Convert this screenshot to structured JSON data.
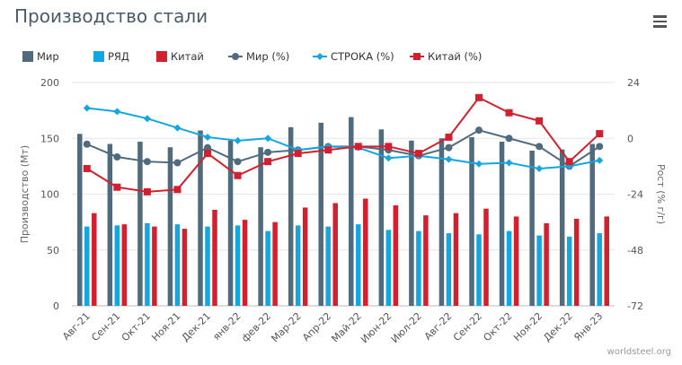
{
  "title": "Производство стали",
  "menu_icon": "hamburger-menu-icon",
  "credit": "worldsteel.org",
  "colors": {
    "world": "#4f6b7d",
    "row": "#12a7e0",
    "china": "#d41f2e"
  },
  "legend": [
    {
      "name": "Мир",
      "kind": "bar",
      "color": "#4f6b7d"
    },
    {
      "name": "РЯД",
      "kind": "bar",
      "color": "#12a7e0"
    },
    {
      "name": "Китай",
      "kind": "bar",
      "color": "#d41f2e"
    },
    {
      "name": "Мир (%)",
      "kind": "line-circle",
      "color": "#4f6b7d"
    },
    {
      "name": "СТРОКА (%)",
      "kind": "line-diamond",
      "color": "#12a7e0"
    },
    {
      "name": "Китай (%)",
      "kind": "line-square",
      "color": "#d41f2e"
    }
  ],
  "chart_data": {
    "type": "bar+line",
    "categories": [
      "Авг-21",
      "Сен-21",
      "Окт-21",
      "Ноя-21",
      "Дек-21",
      "янв-22",
      "фев-22",
      "Мар-22",
      "Апр-22",
      "Май-22",
      "Июн-22",
      "Июл-22",
      "Авг-22",
      "Сен-22",
      "Окт-22",
      "Ноя-22",
      "Дек-22",
      "Янв-23"
    ],
    "y_left": {
      "label": "Производство (Мт)",
      "min": 0,
      "max": 200,
      "ticks": [
        0,
        50,
        100,
        150,
        200
      ]
    },
    "y_right": {
      "label": "Рост (% г/г)",
      "min": -72,
      "max": 24,
      "ticks": [
        -72,
        -48,
        -24,
        0,
        24
      ]
    },
    "bars": [
      {
        "name": "Мир",
        "values": [
          154,
          145,
          147,
          142,
          157,
          148,
          142,
          160,
          164,
          169,
          158,
          148,
          150,
          151,
          147,
          139,
          140,
          145
        ]
      },
      {
        "name": "РЯД",
        "values": [
          71,
          72,
          74,
          73,
          71,
          72,
          67,
          72,
          71,
          73,
          68,
          67,
          65,
          64,
          67,
          63,
          62,
          65
        ]
      },
      {
        "name": "Китай",
        "values": [
          83,
          73,
          71,
          69,
          86,
          77,
          75,
          88,
          92,
          96,
          90,
          81,
          83,
          87,
          80,
          74,
          78,
          80
        ]
      }
    ],
    "lines": [
      {
        "name": "Мир (%)",
        "axis": "right",
        "values": [
          -2.5,
          -8,
          -10,
          -10.5,
          -4,
          -10,
          -6,
          -5,
          -3.5,
          -3.5,
          -5,
          -7.5,
          -4,
          3.5,
          0,
          -3.5,
          -12,
          -3.5
        ]
      },
      {
        "name": "СТРОКА (%)",
        "axis": "right",
        "values": [
          13,
          11.5,
          8.5,
          4.5,
          0.5,
          -1,
          0,
          -5,
          -3.5,
          -4,
          -8.5,
          -7.5,
          -9,
          -11,
          -10.5,
          -13,
          -12,
          -9.5
        ]
      },
      {
        "name": "Китай (%)",
        "axis": "right",
        "values": [
          -13,
          -21,
          -23,
          -22,
          -6.5,
          -16,
          -10,
          -6.5,
          -5,
          -3.5,
          -3.5,
          -6.5,
          0.5,
          17.5,
          11,
          7.5,
          -10,
          2
        ]
      }
    ]
  }
}
